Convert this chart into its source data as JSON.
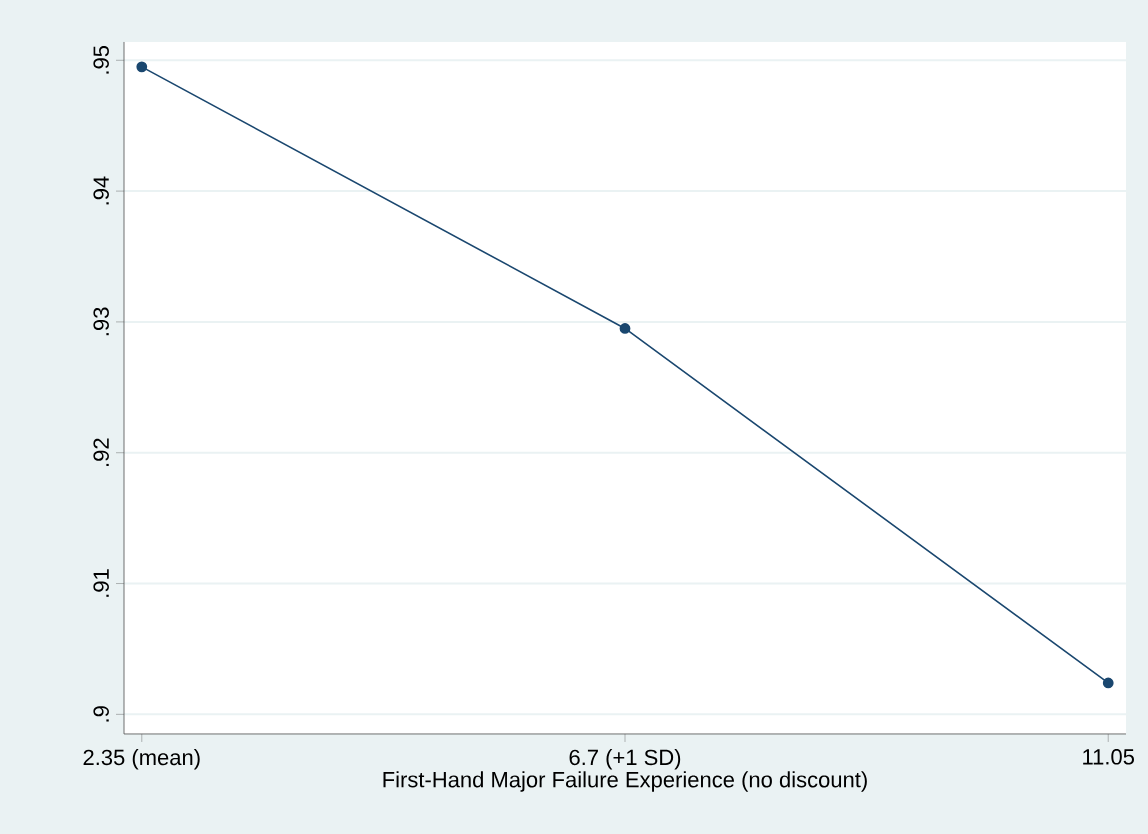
{
  "chart_data": {
    "type": "line",
    "xlabel": "First-Hand Major Failure Experience (no discount)",
    "x": [
      2.35,
      6.7,
      11.05
    ],
    "series": [
      {
        "color": "#1a476f",
        "values": [
          0.9495,
          0.9295,
          0.9024
        ]
      }
    ],
    "xlim": [
      2.19,
      11.21
    ],
    "xticks": [
      {
        "value": 2.35,
        "label": "2.35 (mean)"
      },
      {
        "value": 6.7,
        "label": "6.7 (+1 SD)"
      },
      11.05
    ],
    "ylim": [
      0.8985,
      0.9514
    ],
    "yticks": [
      {
        "value": 0.9,
        "label": ".9"
      },
      {
        "value": 0.91,
        "label": ".91"
      },
      {
        "value": 0.92,
        "label": ".92"
      },
      {
        "value": 0.93,
        "label": ".93"
      },
      {
        "value": 0.94,
        "label": ".94"
      },
      {
        "value": 0.95,
        "label": ".95"
      }
    ],
    "grid": "y",
    "marker": "circle",
    "line_style": "solid"
  }
}
